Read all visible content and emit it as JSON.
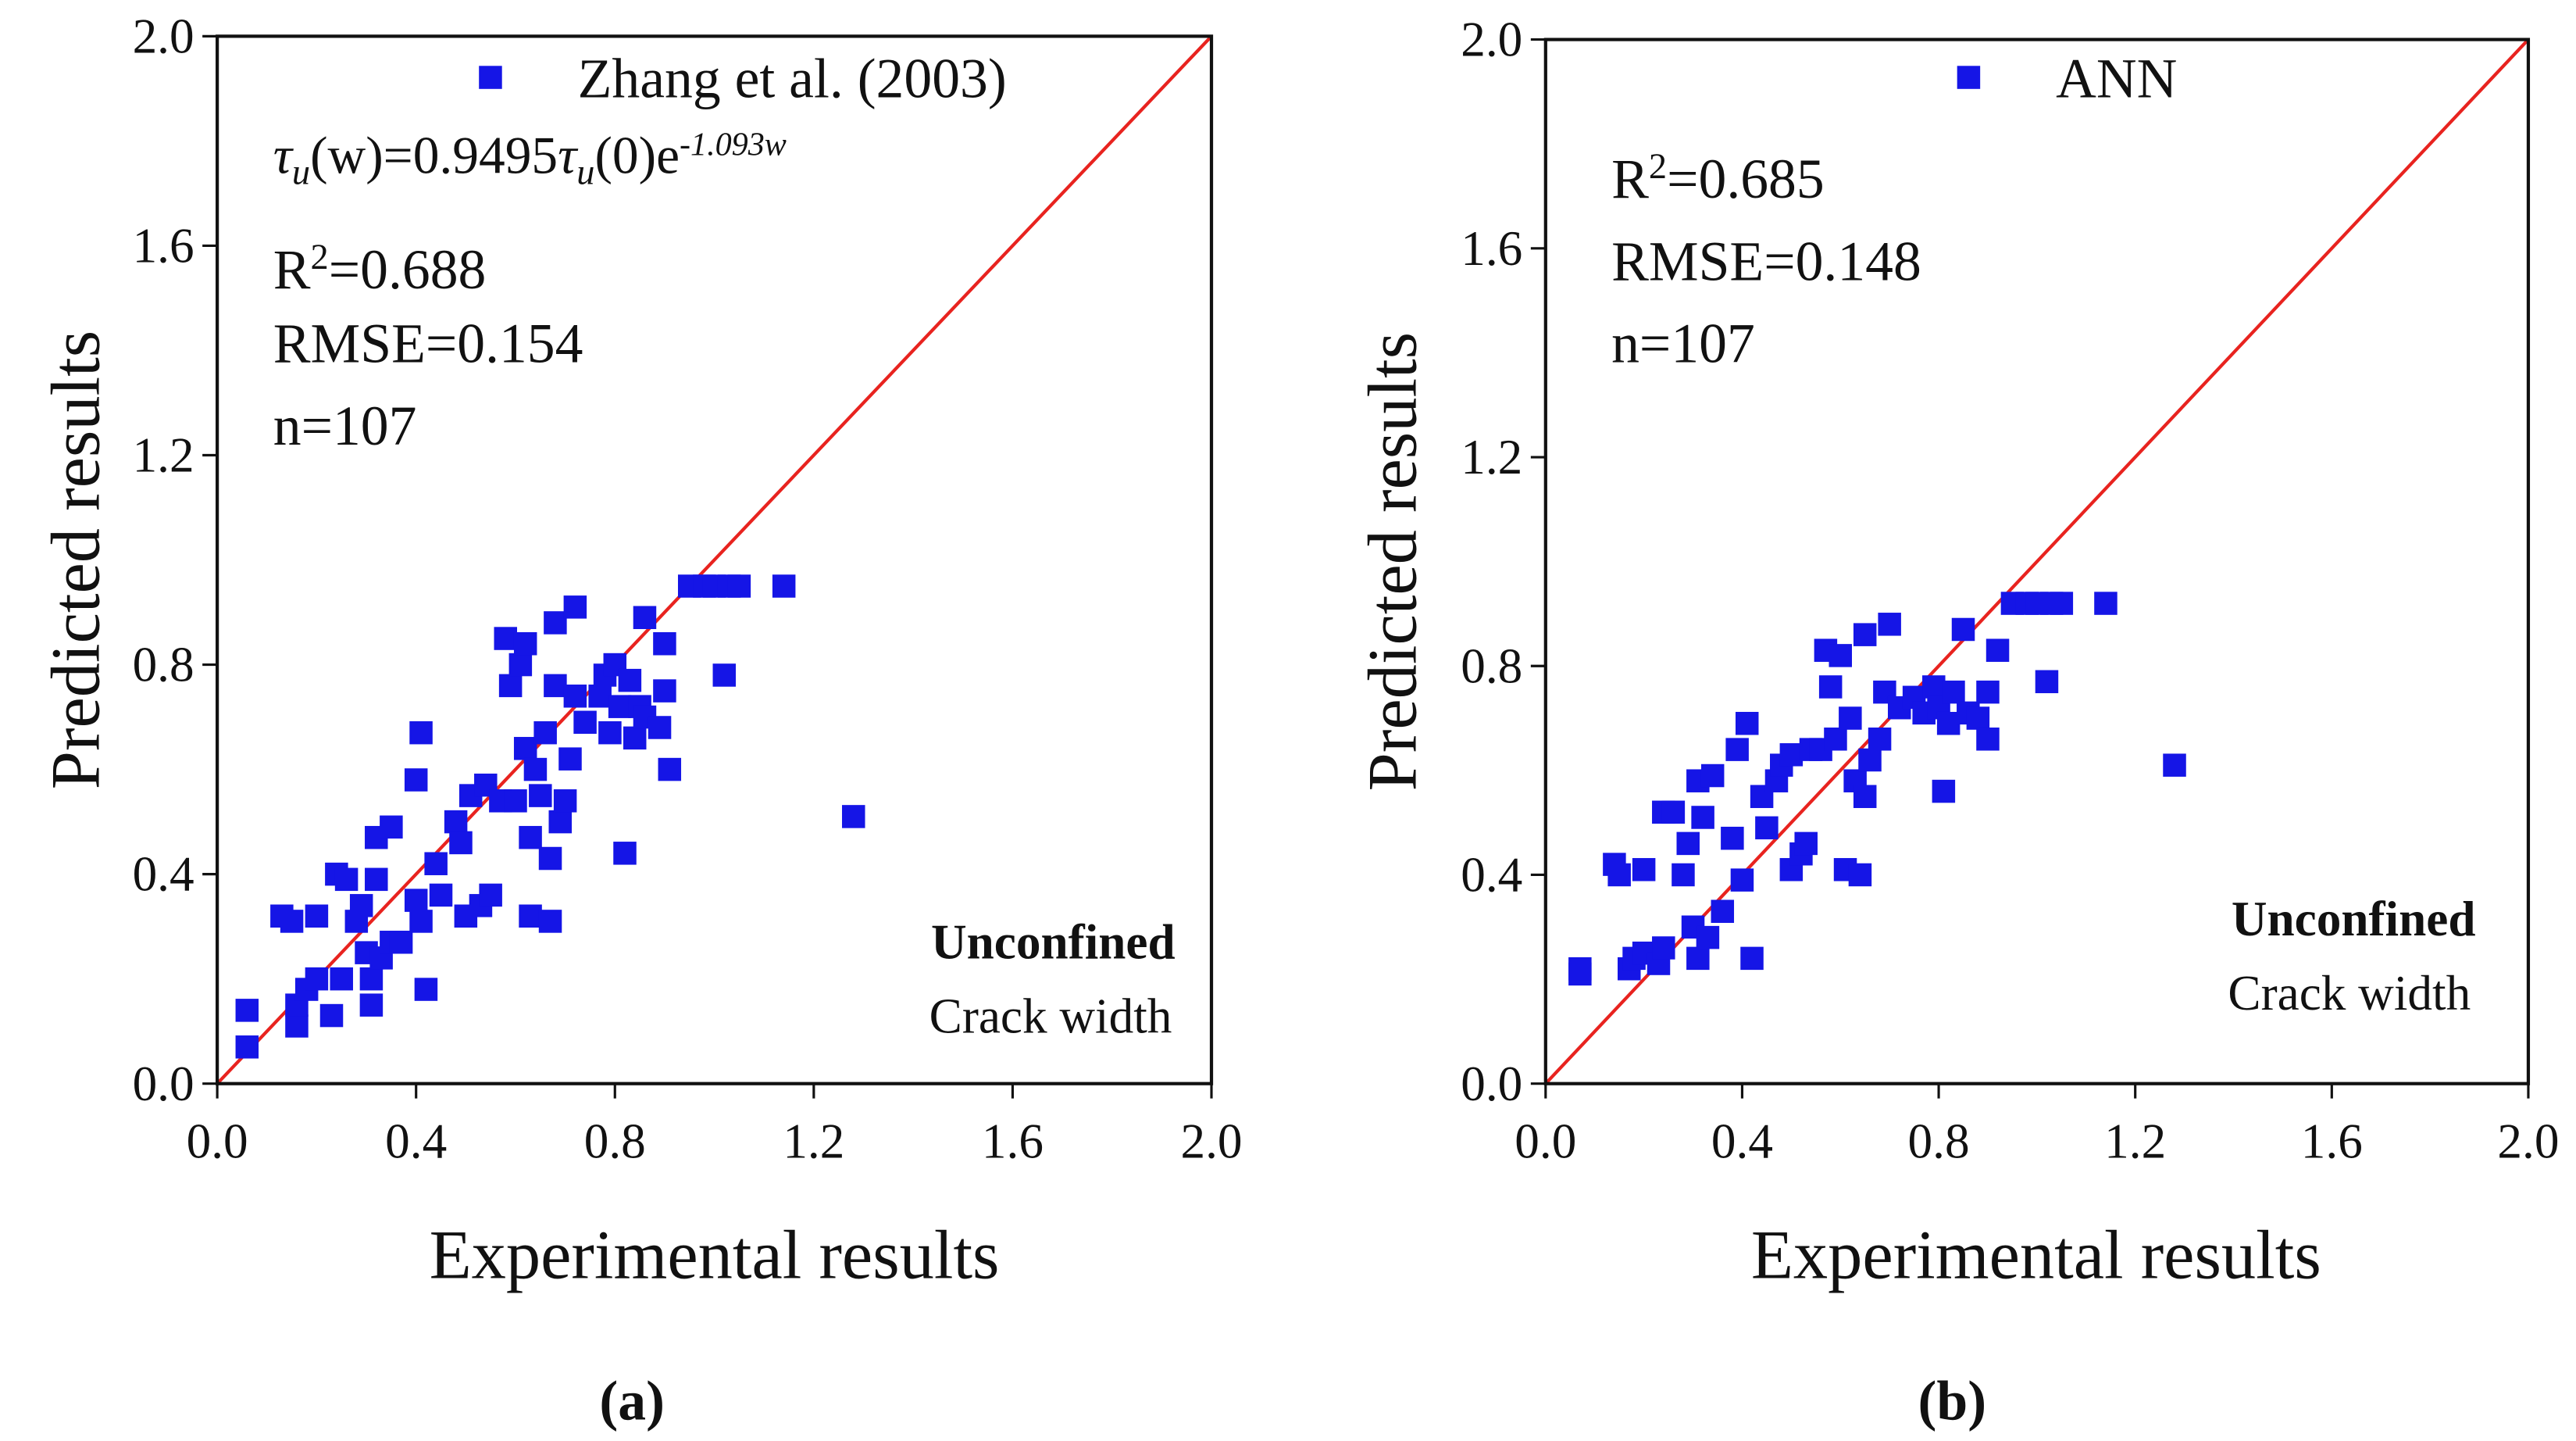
{
  "chart_data": [
    {
      "type": "scatter",
      "panel_label": "(a)",
      "xlabel": "Experimental results",
      "ylabel": "Predicted results",
      "xlim": [
        0,
        2
      ],
      "ylim": [
        0,
        2
      ],
      "xticks": [
        {
          "value": 0,
          "label": "0.0"
        },
        0.4,
        0.8,
        1.2,
        1.6,
        {
          "value": 2,
          "label": "2.0"
        }
      ],
      "yticks": [
        {
          "value": 0,
          "label": "0.0"
        },
        0.4,
        0.8,
        1.2,
        1.6,
        {
          "value": 2,
          "label": "2.0"
        }
      ],
      "reference_line_color": "#e8231f",
      "equation": [
        "τ",
        "u",
        "(w)=0.9495",
        "τ",
        "u",
        "(0)e",
        "-1.093w"
      ],
      "r2": [
        "R",
        "2",
        "=0.688"
      ],
      "rmse": "RMSE=0.154",
      "n": "n=107",
      "condition": "Unconfined",
      "condition_note": "Crack width",
      "series": [
        {
          "name": "Zhang et al. (2003)",
          "color": "#1515e6",
          "x": [
            0.06,
            0.06,
            0.13,
            0.15,
            0.16,
            0.16,
            0.18,
            0.2,
            0.2,
            0.23,
            0.24,
            0.25,
            0.26,
            0.28,
            0.29,
            0.3,
            0.31,
            0.31,
            0.32,
            0.32,
            0.33,
            0.35,
            0.35,
            0.37,
            0.4,
            0.4,
            0.41,
            0.41,
            0.42,
            0.44,
            0.45,
            0.48,
            0.49,
            0.5,
            0.51,
            0.53,
            0.54,
            0.55,
            0.57,
            0.58,
            0.59,
            0.6,
            0.61,
            0.62,
            0.62,
            0.63,
            0.63,
            0.64,
            0.65,
            0.66,
            0.67,
            0.67,
            0.68,
            0.68,
            0.69,
            0.7,
            0.71,
            0.72,
            0.72,
            0.74,
            0.77,
            0.78,
            0.79,
            0.8,
            0.81,
            0.82,
            0.83,
            0.84,
            0.85,
            0.86,
            0.86,
            0.89,
            0.9,
            0.9,
            0.91,
            0.95,
            0.98,
            1.0,
            1.03,
            1.05,
            1.02,
            1.14,
            1.28
          ],
          "values": [
            0.14,
            0.07,
            0.32,
            0.31,
            0.11,
            0.15,
            0.18,
            0.2,
            0.32,
            0.13,
            0.4,
            0.2,
            0.39,
            0.31,
            0.34,
            0.25,
            0.15,
            0.2,
            0.39,
            0.47,
            0.24,
            0.49,
            0.27,
            0.27,
            0.58,
            0.35,
            0.31,
            0.67,
            0.18,
            0.42,
            0.36,
            0.5,
            0.46,
            0.32,
            0.55,
            0.34,
            0.57,
            0.36,
            0.54,
            0.85,
            0.76,
            0.54,
            0.8,
            0.64,
            0.84,
            0.32,
            0.47,
            0.6,
            0.55,
            0.67,
            0.43,
            0.31,
            0.88,
            0.76,
            0.5,
            0.54,
            0.62,
            0.74,
            0.91,
            0.69,
            0.74,
            0.78,
            0.67,
            0.8,
            0.72,
            0.44,
            0.77,
            0.66,
            0.72,
            0.89,
            0.7,
            0.68,
            0.75,
            0.84,
            0.6,
            0.95,
            0.95,
            0.95,
            0.95,
            0.95,
            0.78,
            0.95,
            0.51
          ]
        }
      ]
    },
    {
      "type": "scatter",
      "panel_label": "(b)",
      "xlabel": "Experimental results",
      "ylabel": "Predicted results",
      "xlim": [
        0,
        2
      ],
      "ylim": [
        0,
        2
      ],
      "xticks": [
        {
          "value": 0,
          "label": "0.0"
        },
        0.4,
        0.8,
        1.2,
        1.6,
        {
          "value": 2,
          "label": "2.0"
        }
      ],
      "yticks": [
        {
          "value": 0,
          "label": "0.0"
        },
        0.4,
        0.8,
        1.2,
        1.6,
        {
          "value": 2,
          "label": "2.0"
        }
      ],
      "reference_line_color": "#e8231f",
      "r2": [
        "R",
        "2",
        "=0.685"
      ],
      "rmse": "RMSE=0.148",
      "n": "n=107",
      "condition": "Unconfined",
      "condition_note": "Crack width",
      "series": [
        {
          "name": "ANN",
          "color": "#1515e6",
          "x": [
            0.07,
            0.07,
            0.14,
            0.15,
            0.17,
            0.18,
            0.2,
            0.2,
            0.23,
            0.24,
            0.24,
            0.26,
            0.28,
            0.29,
            0.3,
            0.31,
            0.31,
            0.32,
            0.33,
            0.34,
            0.36,
            0.38,
            0.39,
            0.4,
            0.41,
            0.42,
            0.44,
            0.45,
            0.47,
            0.48,
            0.5,
            0.5,
            0.52,
            0.53,
            0.54,
            0.56,
            0.57,
            0.58,
            0.59,
            0.6,
            0.61,
            0.62,
            0.63,
            0.64,
            0.65,
            0.65,
            0.66,
            0.68,
            0.69,
            0.7,
            0.72,
            0.75,
            0.77,
            0.79,
            0.8,
            0.81,
            0.82,
            0.83,
            0.85,
            0.86,
            0.88,
            0.9,
            0.9,
            0.92,
            0.95,
            0.98,
            1.0,
            1.03,
            1.05,
            1.02,
            1.14,
            1.28
          ],
          "values": [
            0.21,
            0.22,
            0.42,
            0.4,
            0.22,
            0.24,
            0.41,
            0.25,
            0.23,
            0.52,
            0.26,
            0.52,
            0.4,
            0.46,
            0.3,
            0.58,
            0.24,
            0.51,
            0.28,
            0.59,
            0.33,
            0.47,
            0.64,
            0.39,
            0.69,
            0.24,
            0.55,
            0.49,
            0.58,
            0.61,
            0.41,
            0.63,
            0.44,
            0.46,
            0.64,
            0.64,
            0.83,
            0.76,
            0.66,
            0.82,
            0.41,
            0.7,
            0.58,
            0.4,
            0.55,
            0.86,
            0.62,
            0.66,
            0.75,
            0.88,
            0.72,
            0.74,
            0.71,
            0.76,
            0.72,
            0.56,
            0.69,
            0.75,
            0.87,
            0.71,
            0.7,
            0.75,
            0.66,
            0.83,
            0.92,
            0.92,
            0.92,
            0.92,
            0.92,
            0.77,
            0.92,
            0.61
          ]
        }
      ]
    }
  ]
}
